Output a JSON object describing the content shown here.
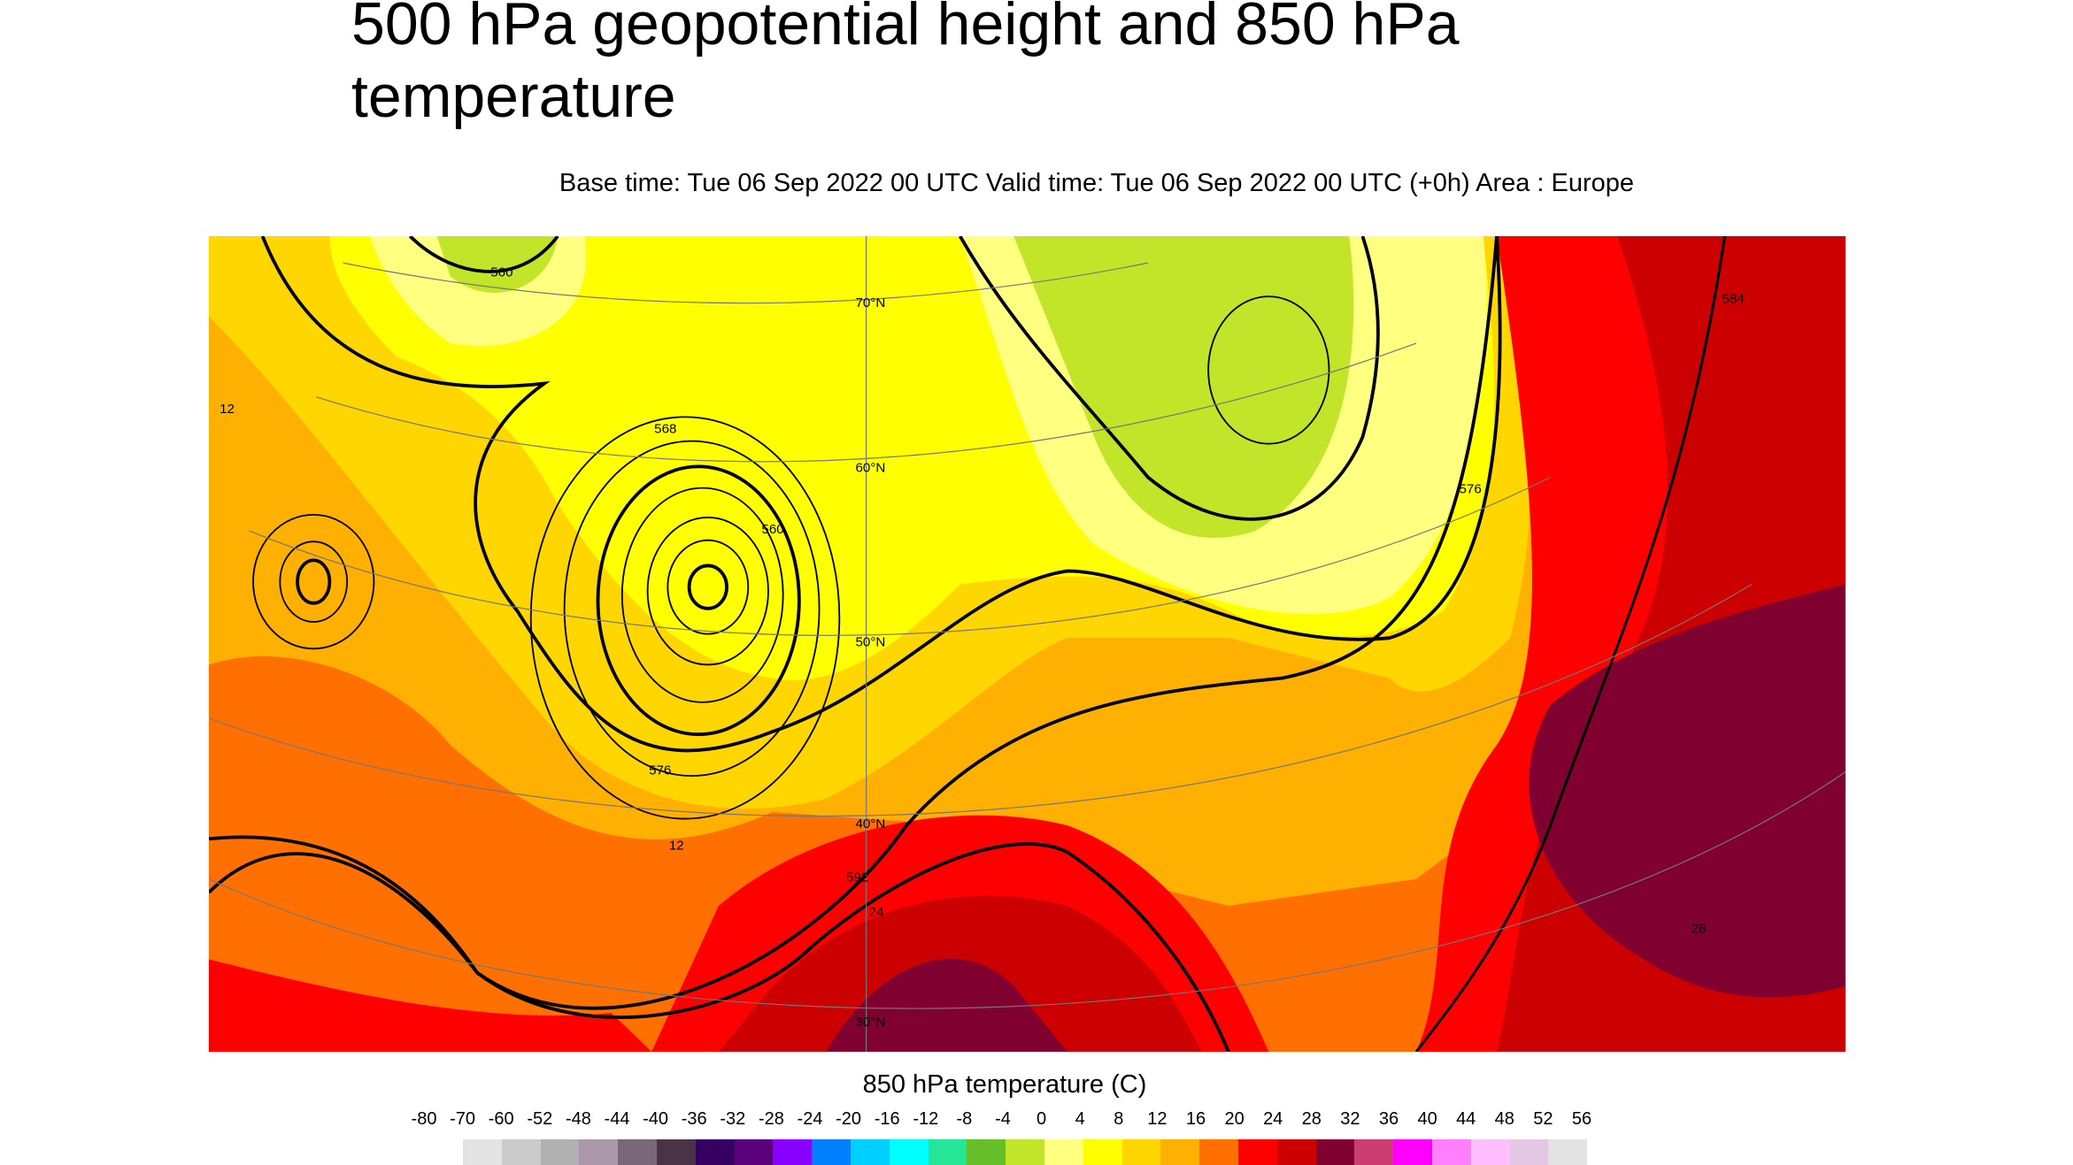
{
  "title": "500 hPa geopotential height and 850 hPa temperature",
  "subtitle": "Base time: Tue 06 Sep 2022 00 UTC Valid time: Tue 06 Sep 2022 00 UTC (+0h) Area : Europe",
  "chart_data": {
    "type": "heatmap",
    "title": "500 hPa geopotential height and 850 hPa temperature",
    "area": "Europe",
    "fill_variable": "850 hPa temperature (C)",
    "contour_variable": "500 hPa geopotential height (dam)",
    "contour_labels": [
      "560",
      "568",
      "576",
      "584",
      "592"
    ],
    "temperature_labels": [
      "12",
      "24",
      "28"
    ],
    "latitude_labels": [
      "70°N",
      "60°N",
      "50°N",
      "40°N",
      "30°N"
    ],
    "colorbar": {
      "label": "850 hPa temperature (C)",
      "ticks": [
        "-80",
        "-70",
        "-60",
        "-52",
        "-48",
        "-44",
        "-40",
        "-36",
        "-32",
        "-28",
        "-24",
        "-20",
        "-16",
        "-12",
        "-8",
        "-4",
        "0",
        "4",
        "8",
        "12",
        "16",
        "20",
        "24",
        "28",
        "32",
        "36",
        "40",
        "44",
        "48",
        "52",
        "56"
      ],
      "colors": [
        "#e3e3e3",
        "#cbcbcb",
        "#b1b1b1",
        "#ab98ab",
        "#7a6878",
        "#483446",
        "#350062",
        "#5a007a",
        "#8800ff",
        "#0080ff",
        "#00d0ff",
        "#00ffff",
        "#25e596",
        "#66bf28",
        "#c2e52a",
        "#ffff80",
        "#ffff00",
        "#ffd600",
        "#ffb000",
        "#ff7000",
        "#ff0000",
        "#cc0000",
        "#800030",
        "#cc3d70",
        "#ff00ff",
        "#ff80ff",
        "#ffbfff",
        "#e3c8e3",
        "#e3e3e3"
      ]
    }
  }
}
